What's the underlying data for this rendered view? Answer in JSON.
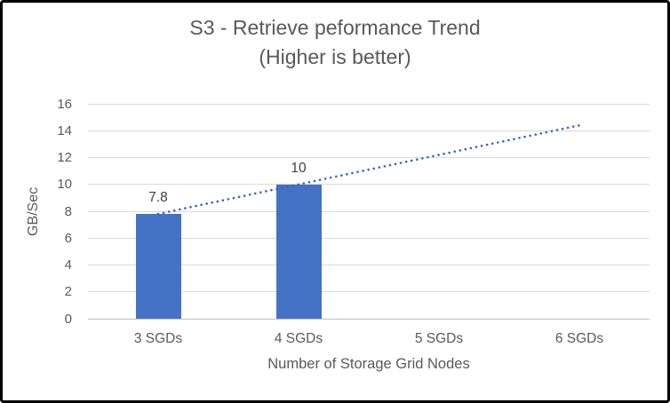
{
  "window": {
    "background_color": "#ffffff",
    "border_color": "#000000"
  },
  "chart_data": {
    "type": "bar",
    "title_line1": "S3 - Retrieve peformance Trend",
    "title_line2": "(Higher is better)",
    "categories": [
      "3 SGDs",
      "4 SGDs",
      "5 SGDs",
      "6 SGDs"
    ],
    "values": [
      7.8,
      10,
      null,
      null
    ],
    "data_labels": [
      "7.8",
      "10"
    ],
    "xlabel": "Number of Storage Grid Nodes",
    "ylabel": "GB/Sec",
    "ylim": [
      0,
      16
    ],
    "yticks": [
      0,
      2,
      4,
      6,
      8,
      10,
      12,
      14,
      16
    ],
    "grid": true,
    "legend": "none",
    "bar_color": "#4472C4",
    "trendline": {
      "style": "dotted",
      "color": "#3A63C6",
      "start": {
        "category_index": 0,
        "value": 7.8
      },
      "end": {
        "category_index": 3,
        "value": 14.4
      }
    },
    "text_color": "#595959",
    "data_label_color": "#404040",
    "gridline_color": "#D9D9D9"
  }
}
